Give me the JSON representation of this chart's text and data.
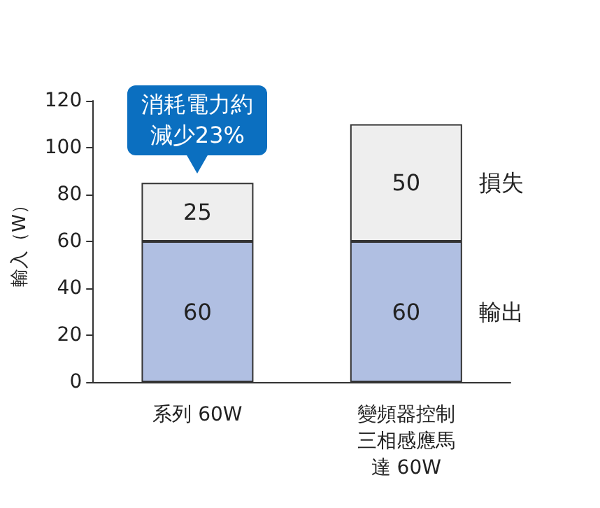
{
  "chart_data": {
    "type": "bar",
    "stacked": true,
    "ylabel": "輸入（W）",
    "categories": [
      "系列 60W",
      "變頻器控制三相感應馬達 60W"
    ],
    "series": [
      {
        "name": "輸出",
        "color": "#b0bfe2",
        "values": [
          60,
          60
        ]
      },
      {
        "name": "損失",
        "color": "#eeeeee",
        "values": [
          25,
          50
        ]
      }
    ],
    "ylim": [
      0,
      120
    ],
    "yticks": [
      0,
      20,
      40,
      60,
      80,
      100,
      120
    ],
    "grid": false,
    "legend": false,
    "data_labels": true,
    "annotations": [
      {
        "text": "消耗電力約減少23%",
        "x": "系列 60W",
        "y": 85
      }
    ]
  }
}
